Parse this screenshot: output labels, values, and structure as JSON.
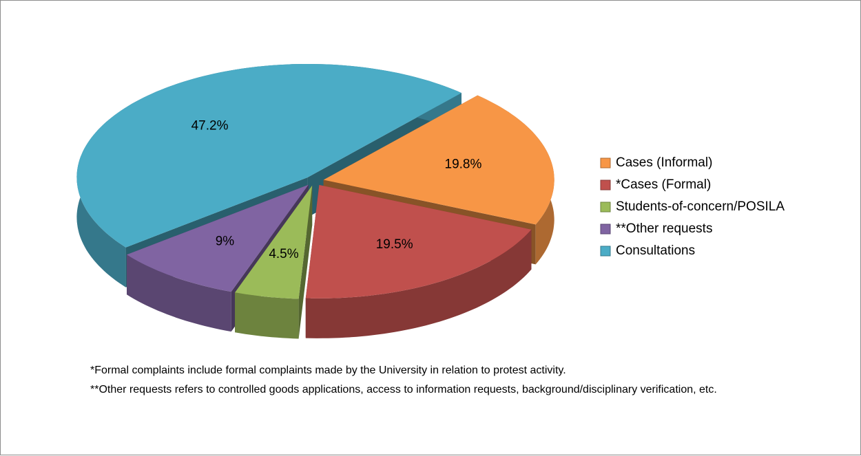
{
  "chart_data": {
    "type": "pie",
    "categories": [
      "Cases (Informal)",
      "*Cases (Formal)",
      "Students-of-concern/POSILA",
      "**Other requests",
      "Consultations"
    ],
    "values": [
      19.8,
      19.5,
      4.5,
      9,
      47.2
    ],
    "value_labels": [
      "19.8%",
      "19.5%",
      "4.5%",
      "9%",
      "47.2%"
    ],
    "colors": [
      "#f79646",
      "#c0504d",
      "#9bbb59",
      "#8064a2",
      "#4bacc6"
    ],
    "legend": "right",
    "notes": [
      "*Formal complaints include formal complaints made by the University in relation to protest activity.",
      "**Other requests refers to controlled goods applications, access to information requests, background/disciplinary verification, etc."
    ]
  }
}
